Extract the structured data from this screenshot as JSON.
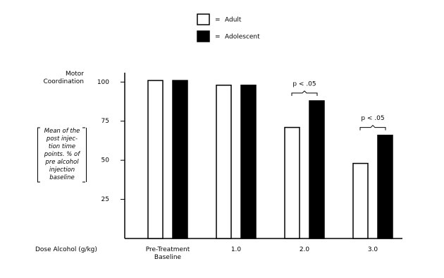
{
  "chart_data": {
    "type": "bar",
    "legend_prefix": "=",
    "y_label": "Motor Coordination",
    "y_note": [
      "Mean of the",
      "post injec-",
      "tion time",
      "points. % of",
      "pre alcohol",
      "injection",
      "baseline"
    ],
    "x_label": "Dose Alcohol (g/kg)",
    "categories": [
      "Pre-Treatment Baseline",
      "1.0",
      "2.0",
      "3.0"
    ],
    "series": [
      {
        "name": "Adult",
        "color": "#ffffff",
        "values": [
          101,
          98,
          71,
          48
        ]
      },
      {
        "name": "Adolescent",
        "color": "#000000",
        "values": [
          101,
          98,
          88,
          66
        ]
      }
    ],
    "annotations": [
      {
        "text": "p < .05",
        "category": "2.0"
      },
      {
        "text": "p < .05",
        "category": "3.0"
      }
    ],
    "ylim": [
      0,
      106
    ],
    "yticks": [
      25,
      50,
      75,
      100
    ],
    "grid": false
  }
}
